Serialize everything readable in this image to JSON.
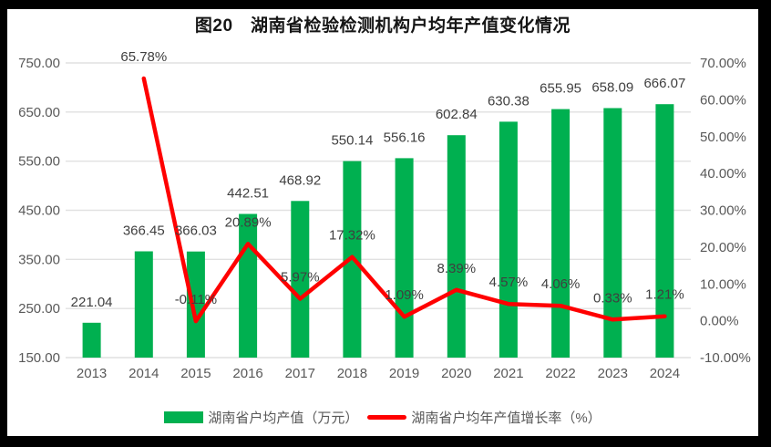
{
  "title": "图20　湖南省检验检测机构户均年产值变化情况",
  "colors": {
    "background": "#000000",
    "panel": "#FFFFFF",
    "bar": "#00B050",
    "line": "#FF0000",
    "gridline": "#E1E1E1",
    "axis_text": "#595959",
    "label_text": "#3F3F3F",
    "title_text": "#151515"
  },
  "chart_data": {
    "type": "combo-bar-line",
    "title": "图20　湖南省检验检测机构户均年产值变化情况",
    "categories": [
      "2013",
      "2014",
      "2015",
      "2016",
      "2017",
      "2018",
      "2019",
      "2020",
      "2021",
      "2022",
      "2023",
      "2024"
    ],
    "series": [
      {
        "name": "湖南省户均产值（万元）",
        "type": "bar",
        "axis": "left",
        "color": "#00B050",
        "values": [
          221.04,
          366.45,
          366.03,
          442.51,
          468.92,
          550.14,
          556.16,
          602.84,
          630.38,
          655.95,
          658.09,
          666.07
        ],
        "labels": [
          "221.04",
          "366.45",
          "366.03",
          "442.51",
          "468.92",
          "550.14",
          "556.16",
          "602.84",
          "630.38",
          "655.95",
          "658.09",
          "666.07"
        ]
      },
      {
        "name": "湖南省户均年产值增长率（%）",
        "type": "line",
        "axis": "right",
        "color": "#FF0000",
        "values": [
          null,
          65.78,
          -0.11,
          20.89,
          5.97,
          17.32,
          1.09,
          8.39,
          4.57,
          4.06,
          0.33,
          1.21
        ],
        "labels": [
          null,
          "65.78%",
          "-0.11%",
          "20.89%",
          "5.97%",
          "17.32%",
          "1.09%",
          "8.39%",
          "4.57%",
          "4.06%",
          "0.33%",
          "1.21%"
        ]
      }
    ],
    "left_axis": {
      "min": 150,
      "max": 750,
      "tick_values": [
        750,
        650,
        550,
        450,
        350,
        250,
        150
      ],
      "ticks": [
        "750.00",
        "650.00",
        "550.00",
        "450.00",
        "350.00",
        "250.00",
        "150.00"
      ]
    },
    "right_axis": {
      "min": -10,
      "max": 70,
      "tick_values": [
        70,
        60,
        50,
        40,
        30,
        20,
        10,
        0,
        -10
      ],
      "ticks": [
        "70.00%",
        "60.00%",
        "50.00%",
        "40.00%",
        "30.00%",
        "20.00%",
        "10.00%",
        "0.00%",
        "-10.00%"
      ]
    },
    "grid": true,
    "legend_position": "bottom"
  },
  "legend": {
    "items": [
      {
        "label": "湖南省户均产值（万元）",
        "marker": "bar-swatch"
      },
      {
        "label": "湖南省户均年产值增长率（%）",
        "marker": "line-swatch"
      }
    ]
  }
}
